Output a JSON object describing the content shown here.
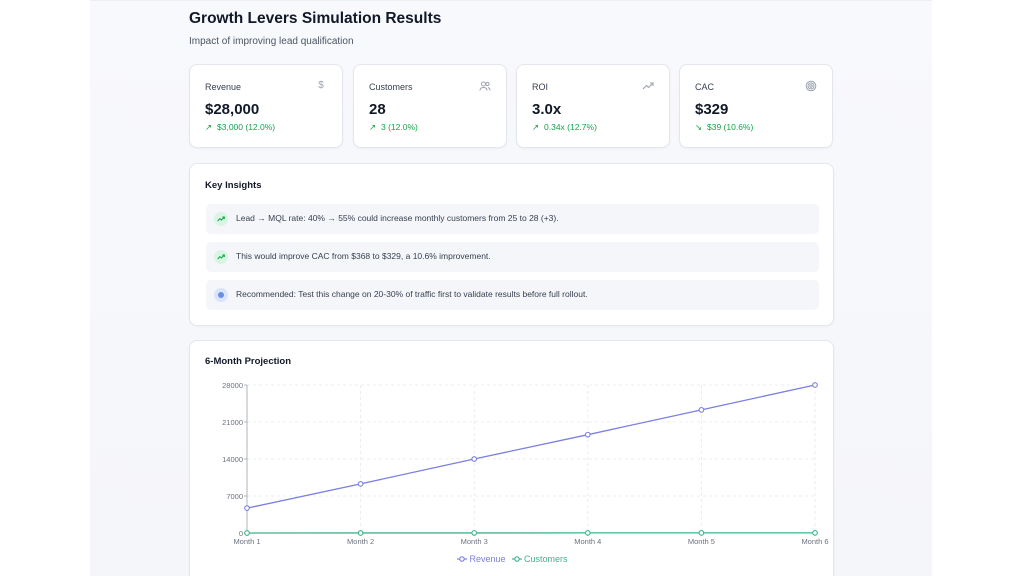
{
  "header": {
    "title": "Growth Levers Simulation Results",
    "subtitle": "Impact of improving lead qualification"
  },
  "metrics": [
    {
      "label": "Revenue",
      "value": "$28,000",
      "change": "$3,000 (12.0%)",
      "icon": "dollar-icon",
      "direction": "up"
    },
    {
      "label": "Customers",
      "value": "28",
      "change": "3 (12.0%)",
      "icon": "users-icon",
      "direction": "up"
    },
    {
      "label": "ROI",
      "value": "3.0x",
      "change": "0.34x (12.7%)",
      "icon": "trending-up-icon",
      "direction": "up"
    },
    {
      "label": "CAC",
      "value": "$329",
      "change": "$39 (10.6%)",
      "icon": "target-icon",
      "direction": "down"
    }
  ],
  "insights": {
    "title": "Key Insights",
    "items": [
      {
        "icon": "trending-up-icon",
        "text": "Lead → MQL rate: 40% → 55% could increase monthly customers from 25 to 28 (+3)."
      },
      {
        "icon": "trending-up-icon",
        "text": "This would improve CAC from $368 to $329, a 10.6% improvement."
      },
      {
        "icon": "info-dot-icon",
        "text": "Recommended: Test this change on 20-30% of traffic first to validate results before full rollout."
      }
    ]
  },
  "projection": {
    "title": "6-Month Projection"
  },
  "chart_data": {
    "type": "line",
    "x": [
      "Month 1",
      "Month 2",
      "Month 3",
      "Month 4",
      "Month 5",
      "Month 6"
    ],
    "series": [
      {
        "name": "Revenue",
        "color": "#7b7fe0",
        "values": [
          4700,
          9300,
          14000,
          18600,
          23300,
          28000
        ]
      },
      {
        "name": "Customers",
        "color": "#3fb58a",
        "values": [
          5,
          9,
          14,
          19,
          23,
          28
        ]
      }
    ],
    "yticks": [
      0,
      7000,
      14000,
      21000,
      28000
    ],
    "ylim": [
      0,
      28000
    ],
    "grid": true,
    "legend": "bottom-center"
  }
}
